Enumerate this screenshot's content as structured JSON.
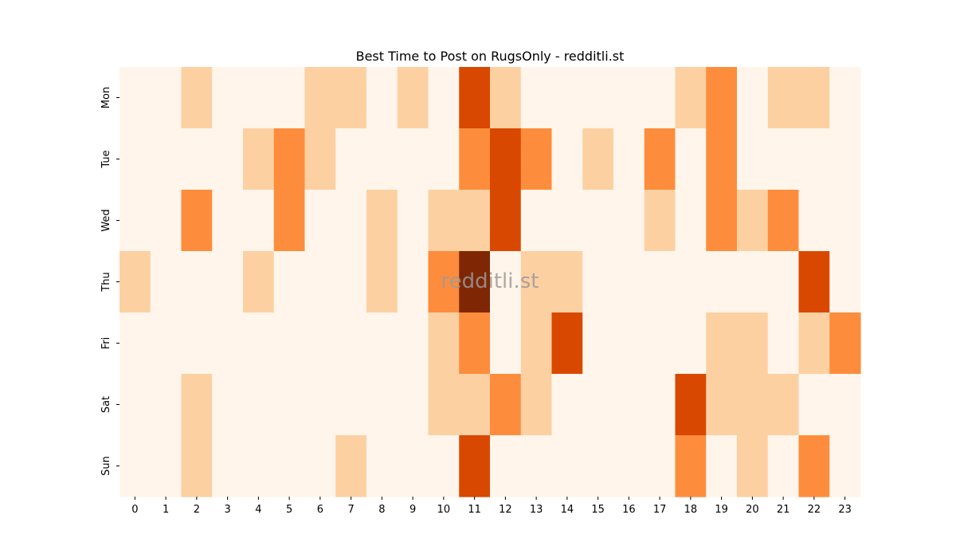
{
  "chart_data": {
    "type": "heatmap",
    "title": "Best Time to Post on RugsOnly - redditli.st",
    "watermark": "redditli.st",
    "x_categories": [
      "0",
      "1",
      "2",
      "3",
      "4",
      "5",
      "6",
      "7",
      "8",
      "9",
      "10",
      "11",
      "12",
      "13",
      "14",
      "15",
      "16",
      "17",
      "18",
      "19",
      "20",
      "21",
      "22",
      "23"
    ],
    "y_categories": [
      "Mon",
      "Tue",
      "Wed",
      "Thu",
      "Fri",
      "Sat",
      "Sun"
    ],
    "values": [
      [
        0,
        0,
        1,
        0,
        0,
        0,
        1,
        1,
        0,
        1,
        0,
        3,
        1,
        0,
        0,
        0,
        0,
        0,
        1,
        2,
        0,
        1,
        1,
        0
      ],
      [
        0,
        0,
        0,
        0,
        1,
        2,
        1,
        0,
        0,
        0,
        0,
        2,
        3,
        2,
        0,
        1,
        0,
        2,
        0,
        2,
        0,
        0,
        0,
        0
      ],
      [
        0,
        0,
        2,
        0,
        0,
        2,
        0,
        0,
        1,
        0,
        1,
        1,
        3,
        0,
        0,
        0,
        0,
        1,
        0,
        2,
        1,
        2,
        0,
        0
      ],
      [
        1,
        0,
        0,
        0,
        1,
        0,
        0,
        0,
        1,
        0,
        2,
        4,
        0,
        1,
        1,
        0,
        0,
        0,
        0,
        0,
        0,
        0,
        3,
        0
      ],
      [
        0,
        0,
        0,
        0,
        0,
        0,
        0,
        0,
        0,
        0,
        1,
        2,
        0,
        1,
        3,
        0,
        0,
        0,
        0,
        1,
        1,
        0,
        1,
        2
      ],
      [
        0,
        0,
        1,
        0,
        0,
        0,
        0,
        0,
        0,
        0,
        1,
        1,
        2,
        1,
        0,
        0,
        0,
        0,
        3,
        1,
        1,
        1,
        0,
        0
      ],
      [
        0,
        0,
        1,
        0,
        0,
        0,
        0,
        1,
        0,
        0,
        0,
        3,
        0,
        0,
        0,
        0,
        0,
        0,
        2,
        0,
        1,
        0,
        2,
        0
      ]
    ],
    "value_range": [
      0,
      4
    ],
    "colormap": "Oranges",
    "color_scale": [
      "#fff5eb",
      "#fdd0a2",
      "#fd8d3c",
      "#d94801",
      "#7f2704"
    ],
    "colorbar": false,
    "grid": false
  }
}
